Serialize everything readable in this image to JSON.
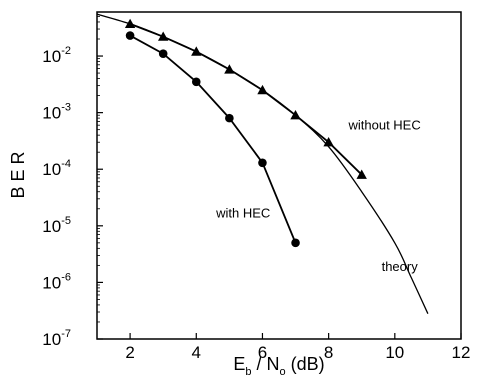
{
  "chart_data": {
    "type": "line",
    "title": "",
    "xlabel": {
      "base": "E",
      "sub1": "b",
      "mid": " / N",
      "sub2": "o",
      "tail": " (dB)"
    },
    "ylabel": "B E R",
    "xlim": [
      1,
      12
    ],
    "ylim": [
      1e-07,
      0.06
    ],
    "yscale": "log",
    "x_ticks": [
      2,
      4,
      6,
      8,
      10,
      12
    ],
    "y_ticks": [
      {
        "value": 0.01,
        "base": "10",
        "exp": "-2"
      },
      {
        "value": 0.001,
        "base": "10",
        "exp": "-3"
      },
      {
        "value": 0.0001,
        "base": "10",
        "exp": "-4"
      },
      {
        "value": 1e-05,
        "base": "10",
        "exp": "-5"
      },
      {
        "value": 1e-06,
        "base": "10",
        "exp": "-6"
      },
      {
        "value": 1e-07,
        "base": "10",
        "exp": "-7"
      }
    ],
    "grid": false,
    "series": [
      {
        "name": "with HEC",
        "marker": "circle",
        "x": [
          2,
          3,
          4,
          5,
          6,
          7
        ],
        "y": [
          0.023,
          0.011,
          0.0035,
          0.0008,
          0.00013,
          5e-06
        ]
      },
      {
        "name": "without HEC",
        "marker": "triangle",
        "x": [
          2,
          3,
          4,
          5,
          6,
          7,
          8,
          9
        ],
        "y": [
          0.037,
          0.022,
          0.012,
          0.0058,
          0.0025,
          0.0009,
          0.0003,
          8e-05
        ]
      },
      {
        "name": "theory",
        "marker": "none",
        "x": [
          1,
          2,
          3,
          4,
          5,
          6,
          7,
          8,
          9,
          10,
          10.5,
          11
        ],
        "y": [
          0.055,
          0.037,
          0.022,
          0.012,
          0.0058,
          0.0025,
          0.0009,
          0.00025,
          4e-05,
          5e-06,
          1.2e-06,
          2.8e-07
        ]
      }
    ],
    "annotations": [
      {
        "text": "without HEC",
        "x": 8.6,
        "y": 0.0005
      },
      {
        "text": "with HEC",
        "x": 4.6,
        "y": 1.4e-05
      },
      {
        "text": "theory",
        "x": 9.6,
        "y": 1.6e-06
      }
    ]
  }
}
